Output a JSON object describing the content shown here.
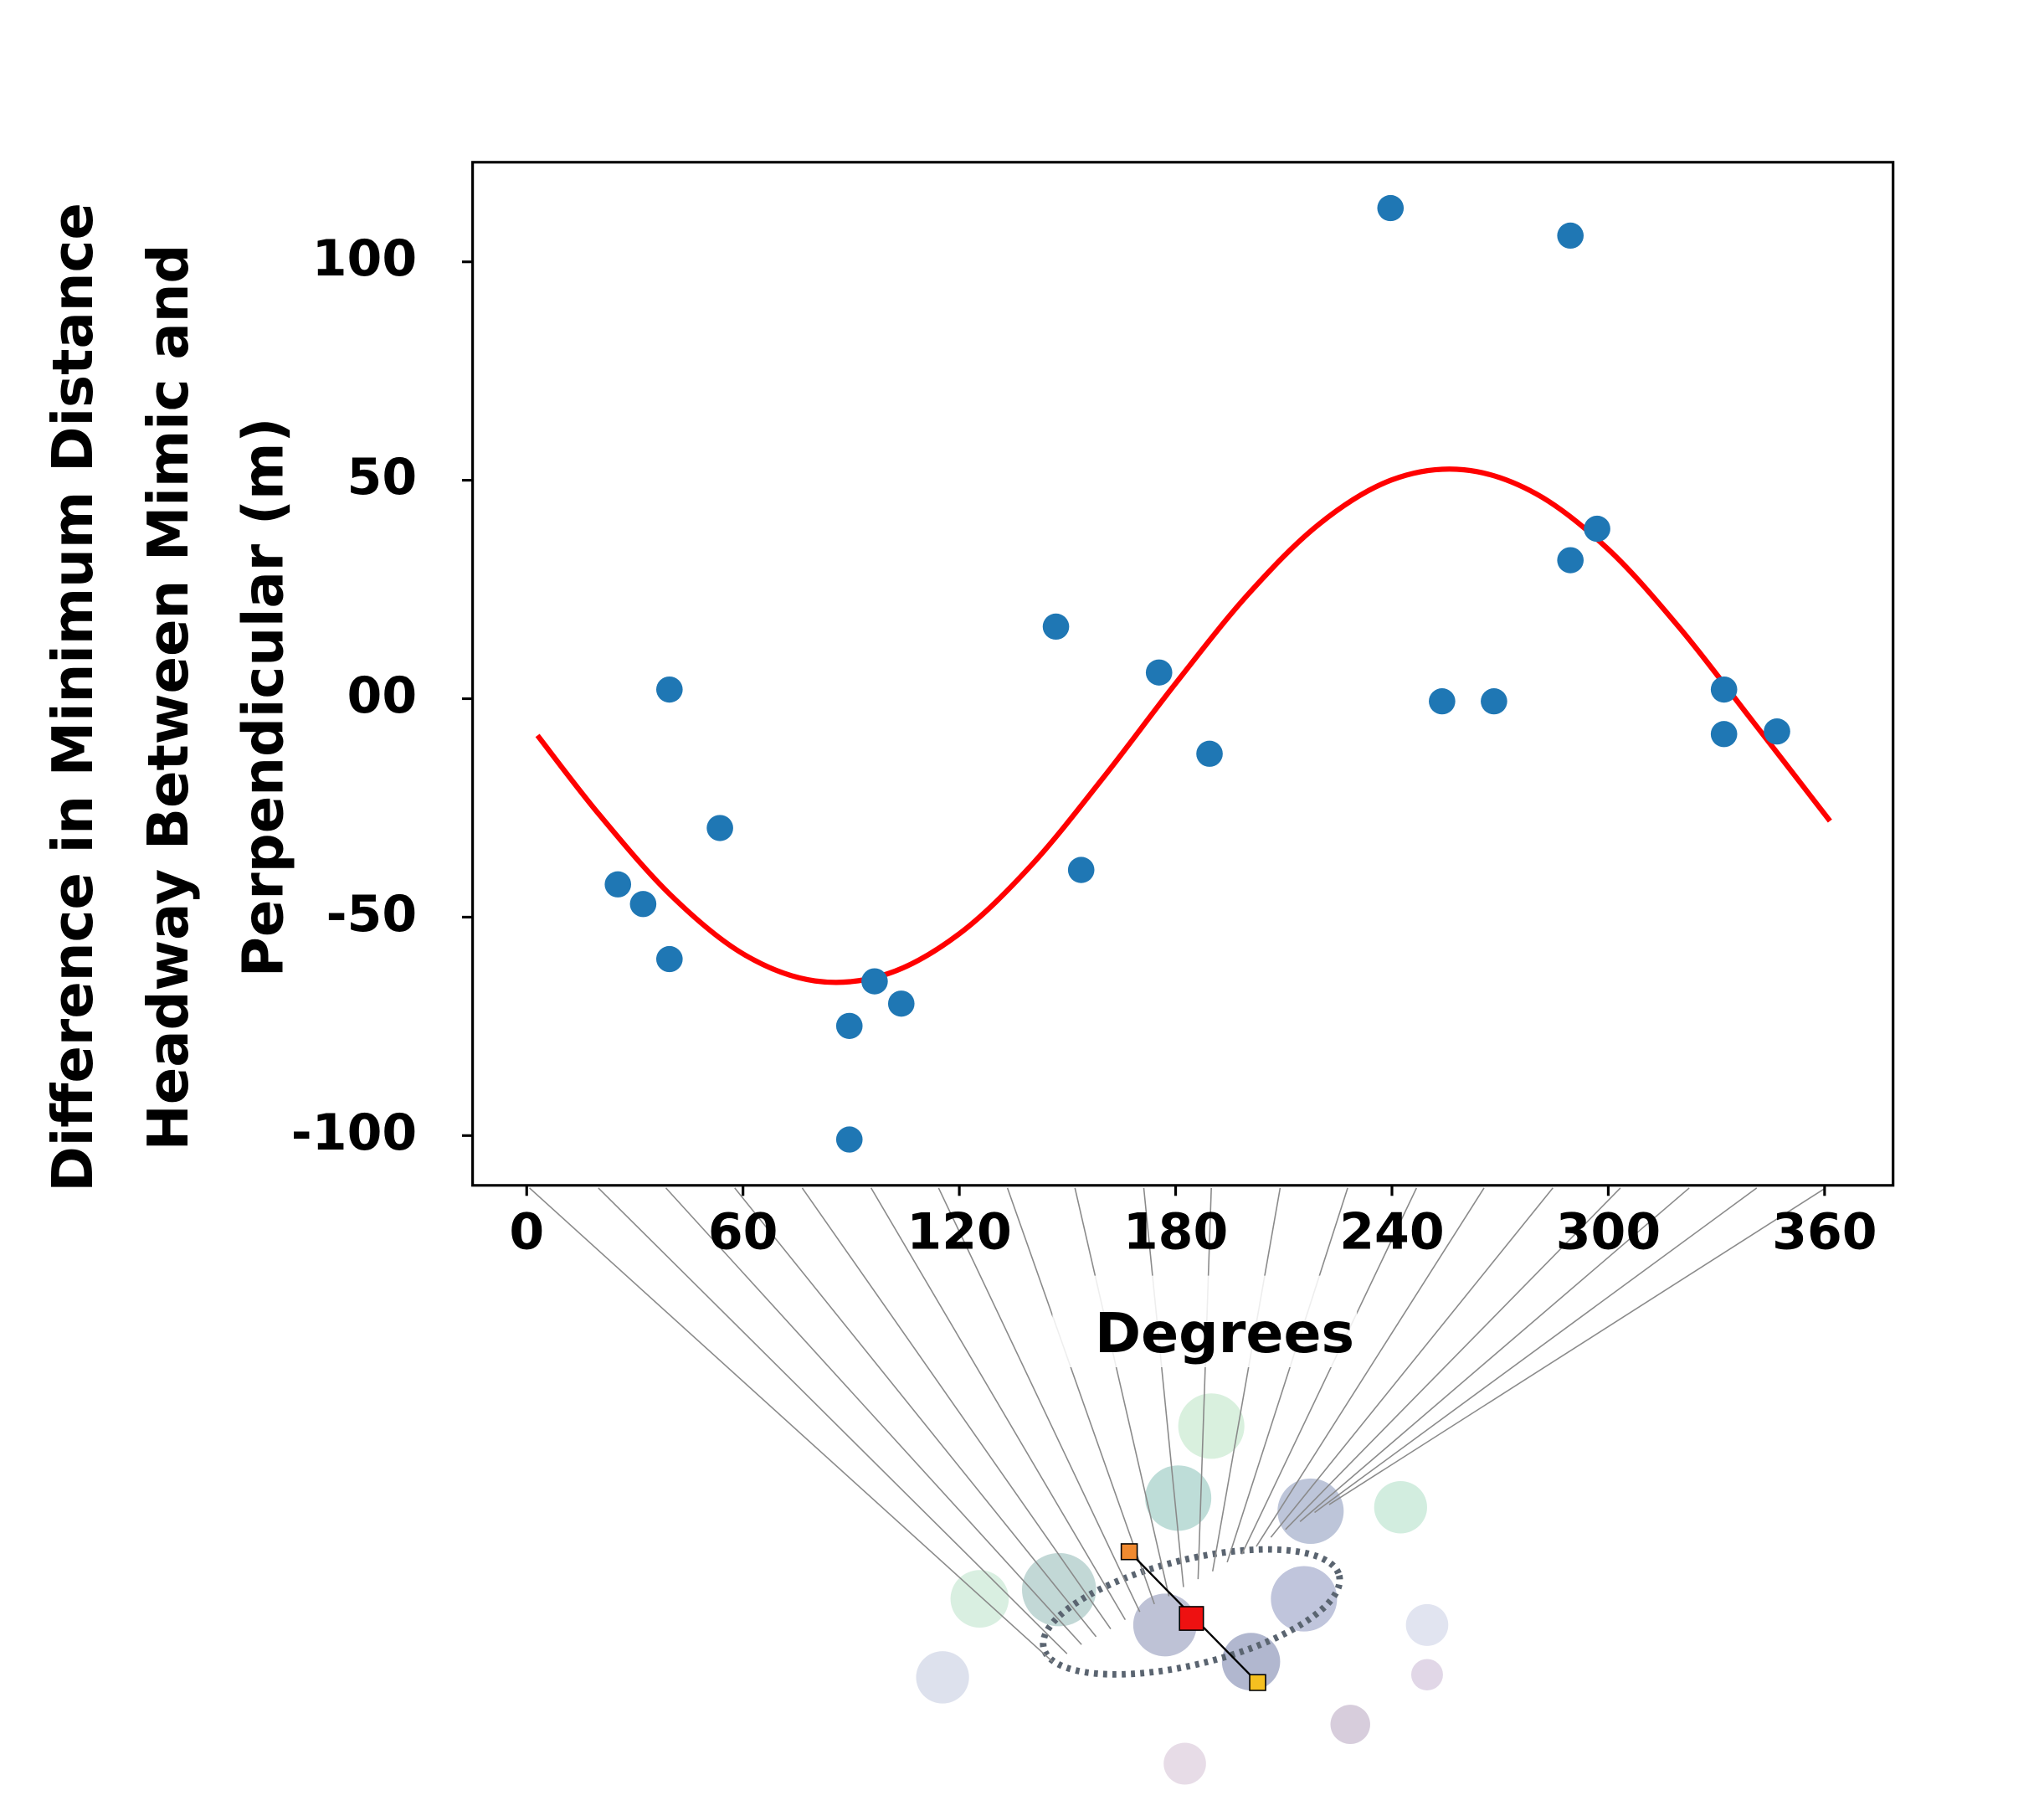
{
  "chart_data": {
    "type": "scatter",
    "xlabel": "Degrees",
    "ylabel": [
      "Difference in Minimum Distance",
      "Headway Between Mimic and",
      "Perpendicular (m)"
    ],
    "xlim": [
      -15,
      379
    ],
    "ylim": [
      -111.4,
      122.8
    ],
    "xticks": [
      0,
      60,
      120,
      180,
      240,
      300,
      360
    ],
    "yticks": [
      -100,
      -50,
      {
        "value": 0,
        "label": "00"
      },
      50,
      100
    ],
    "scatter": {
      "color": "#1f77b4",
      "x": [
        25.3,
        32.3,
        39.6,
        39.6,
        53.6,
        89.5,
        89.5,
        96.5,
        103.9,
        146.8,
        153.8,
        175.4,
        189.4,
        239.6,
        253.9,
        268.3,
        289.5,
        289.5,
        296.9,
        332.1,
        332.1,
        346.8
      ],
      "values": [
        -42.5,
        -47,
        2.1,
        -59.6,
        -29.6,
        -74.9,
        -100.9,
        -64.7,
        -69.8,
        16.5,
        -39.2,
        6,
        -12.6,
        112.3,
        -0.6,
        -0.6,
        106,
        31.7,
        38.9,
        2.1,
        -8.1,
        -7.5
      ]
    },
    "fit": {
      "color": "#ff0000",
      "x": [
        3,
        20,
        40,
        60,
        80,
        100,
        120,
        140,
        160,
        180,
        200,
        220,
        240,
        260,
        280,
        300,
        320,
        340,
        361.5
      ],
      "values": [
        -8.4,
        -26.4,
        -45.0,
        -58.4,
        -64.6,
        -63.0,
        -53.8,
        -38.1,
        -18.0,
        3.5,
        23.8,
        40.1,
        50.1,
        52.4,
        46.9,
        34.2,
        16.0,
        -5.1,
        -28.0
      ]
    }
  }
}
